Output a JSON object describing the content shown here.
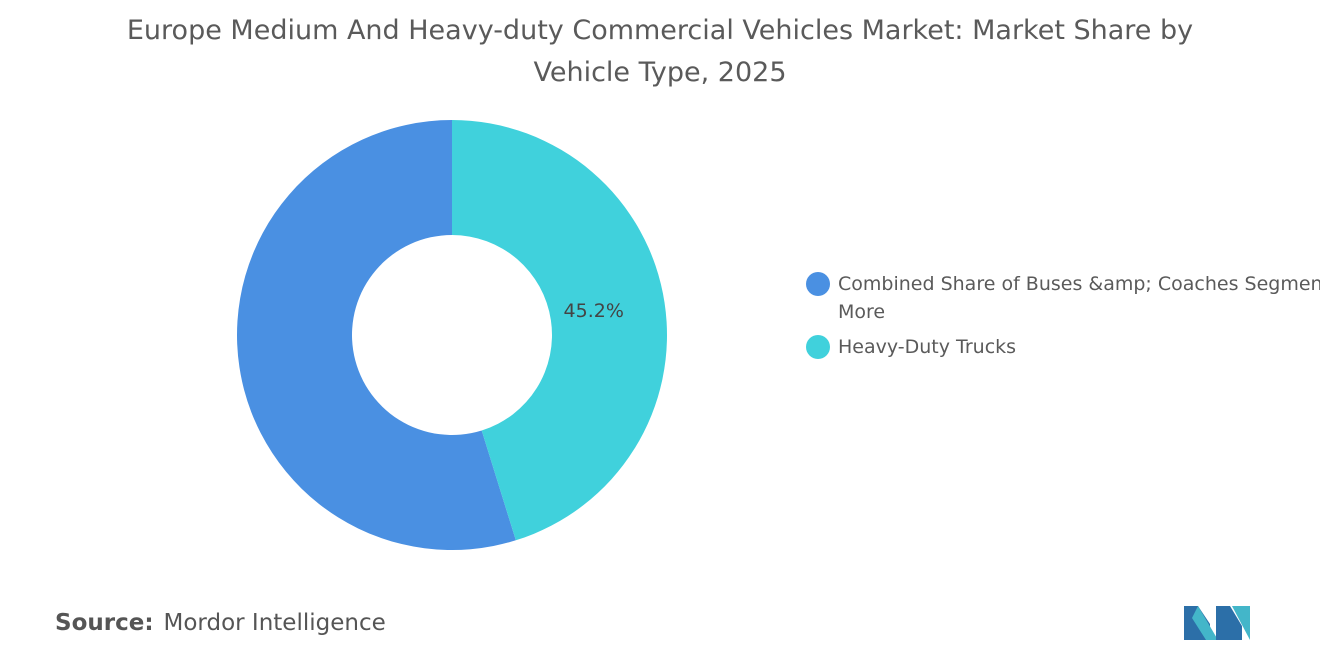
{
  "chart_data": {
    "type": "donut",
    "title": "Europe Medium And Heavy-duty Commercial Vehicles Market: Market Share by Vehicle Type, 2025",
    "categories": [
      "Combined Share of Buses &amp; Coaches Segment and More",
      "Heavy-Duty Trucks"
    ],
    "values": [
      54.8,
      45.2
    ],
    "value_labels": [
      null,
      "45.2%"
    ],
    "colors": [
      "#4a90e2",
      "#40d1dc"
    ],
    "legend": "right"
  },
  "source": {
    "label": "Source:",
    "text": "Mordor Intelligence"
  }
}
